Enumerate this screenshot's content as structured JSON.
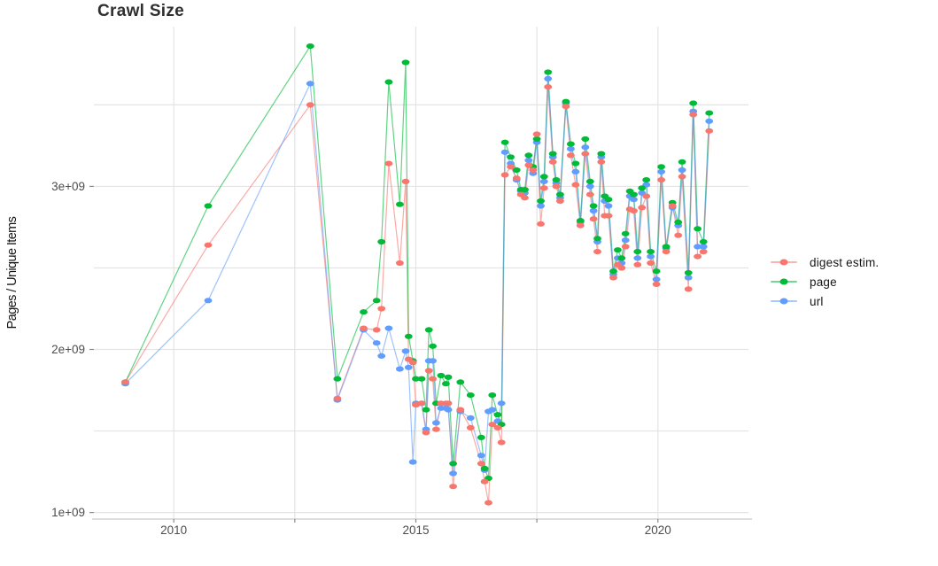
{
  "legend": {
    "items": [
      {
        "label": "digest estim.",
        "color": "#F8766D"
      },
      {
        "label": "page",
        "color": "#00BA38"
      },
      {
        "label": "url",
        "color": "#619CFF"
      }
    ]
  },
  "chart_data": {
    "type": "line",
    "title": "Crawl Size",
    "xlabel": "",
    "ylabel": "Pages / Unique Items",
    "values_unit": "x 1e9 (billions)",
    "x_unit": "decimal year",
    "grid": "on",
    "legend_position": "right",
    "xlim": [
      2008.35,
      2021.87
    ],
    "ylim_e9": [
      0.96,
      3.98
    ],
    "x_ticks": [
      {
        "v": 2010,
        "label": "2010"
      },
      {
        "v": 2012.5,
        "label": ""
      },
      {
        "v": 2015,
        "label": "2015"
      },
      {
        "v": 2017.5,
        "label": ""
      },
      {
        "v": 2020,
        "label": "2020"
      }
    ],
    "y_ticks": [
      {
        "v": 1,
        "label": "1e+09"
      },
      {
        "v": 1.5,
        "label": ""
      },
      {
        "v": 2,
        "label": "2e+09"
      },
      {
        "v": 2.5,
        "label": ""
      },
      {
        "v": 3,
        "label": "3e+09"
      },
      {
        "v": 3.5,
        "label": ""
      }
    ],
    "x": [
      2009.0,
      2010.71,
      2012.82,
      2013.38,
      2013.92,
      2014.19,
      2014.29,
      2014.44,
      2014.67,
      2014.79,
      2014.85,
      2014.94,
      2015.0,
      2015.12,
      2015.21,
      2015.27,
      2015.35,
      2015.42,
      2015.52,
      2015.62,
      2015.67,
      2015.77,
      2015.92,
      2016.13,
      2016.35,
      2016.42,
      2016.5,
      2016.58,
      2016.69,
      2016.77,
      2016.84,
      2016.96,
      2017.08,
      2017.17,
      2017.25,
      2017.33,
      2017.42,
      2017.5,
      2017.58,
      2017.65,
      2017.73,
      2017.83,
      2017.9,
      2017.98,
      2018.1,
      2018.2,
      2018.3,
      2018.4,
      2018.5,
      2018.6,
      2018.67,
      2018.75,
      2018.83,
      2018.9,
      2018.98,
      2019.08,
      2019.17,
      2019.25,
      2019.33,
      2019.42,
      2019.5,
      2019.58,
      2019.67,
      2019.76,
      2019.85,
      2019.97,
      2020.07,
      2020.17,
      2020.3,
      2020.42,
      2020.5,
      2020.63,
      2020.73,
      2020.82,
      2020.94,
      2021.06
    ],
    "series": [
      {
        "name": "digest estim.",
        "color": "#F8766D",
        "values": [
          1.8,
          2.64,
          3.5,
          1.7,
          2.13,
          2.12,
          2.25,
          3.14,
          2.53,
          3.03,
          1.94,
          1.92,
          1.66,
          1.67,
          1.49,
          1.87,
          1.82,
          1.51,
          1.67,
          1.67,
          1.67,
          1.16,
          1.63,
          1.52,
          1.3,
          1.19,
          1.06,
          1.54,
          1.52,
          1.43,
          3.07,
          3.12,
          3.05,
          2.95,
          2.93,
          3.13,
          3.1,
          3.32,
          2.77,
          2.99,
          3.61,
          3.15,
          3.0,
          2.91,
          3.49,
          3.19,
          3.01,
          2.76,
          3.2,
          2.95,
          2.8,
          2.6,
          3.15,
          2.82,
          2.82,
          2.44,
          2.52,
          2.5,
          2.63,
          2.86,
          2.85,
          2.52,
          2.87,
          2.94,
          2.53,
          2.4,
          3.04,
          2.6,
          2.88,
          2.7,
          3.06,
          2.37,
          3.44,
          2.57,
          2.6,
          3.34
        ]
      },
      {
        "name": "page",
        "color": "#00BA38",
        "values": [
          1.8,
          2.88,
          3.86,
          1.82,
          2.23,
          2.3,
          2.66,
          3.64,
          2.89,
          3.76,
          2.08,
          1.93,
          1.82,
          1.82,
          1.63,
          2.12,
          2.02,
          1.67,
          1.84,
          1.79,
          1.83,
          1.3,
          1.8,
          1.72,
          1.46,
          1.27,
          1.21,
          1.72,
          1.6,
          1.54,
          3.27,
          3.18,
          3.1,
          2.98,
          2.98,
          3.19,
          3.12,
          3.29,
          2.91,
          3.06,
          3.7,
          3.2,
          3.04,
          2.95,
          3.52,
          3.26,
          3.14,
          2.79,
          3.29,
          3.03,
          2.88,
          2.68,
          3.2,
          2.94,
          2.92,
          2.48,
          2.61,
          2.56,
          2.71,
          2.97,
          2.95,
          2.6,
          2.99,
          3.04,
          2.6,
          2.48,
          3.12,
          2.63,
          2.9,
          2.78,
          3.15,
          2.47,
          3.51,
          2.74,
          2.66,
          3.45
        ]
      },
      {
        "name": "url",
        "color": "#619CFF",
        "values": [
          1.79,
          2.3,
          3.63,
          1.69,
          2.12,
          2.04,
          1.96,
          2.13,
          1.88,
          1.99,
          1.89,
          1.31,
          1.67,
          1.67,
          1.51,
          1.93,
          1.93,
          1.55,
          1.64,
          1.64,
          1.63,
          1.24,
          1.62,
          1.58,
          1.35,
          1.26,
          1.62,
          1.63,
          1.56,
          1.67,
          3.21,
          3.14,
          3.04,
          2.97,
          2.96,
          3.16,
          3.08,
          3.27,
          2.88,
          3.03,
          3.66,
          3.18,
          3.02,
          2.93,
          3.51,
          3.23,
          3.09,
          2.78,
          3.24,
          3.0,
          2.85,
          2.66,
          3.18,
          2.91,
          2.88,
          2.46,
          2.56,
          2.53,
          2.67,
          2.94,
          2.92,
          2.56,
          2.96,
          3.01,
          2.57,
          2.43,
          3.09,
          2.62,
          2.87,
          2.76,
          3.1,
          2.44,
          3.46,
          2.63,
          2.63,
          3.4
        ]
      }
    ]
  }
}
